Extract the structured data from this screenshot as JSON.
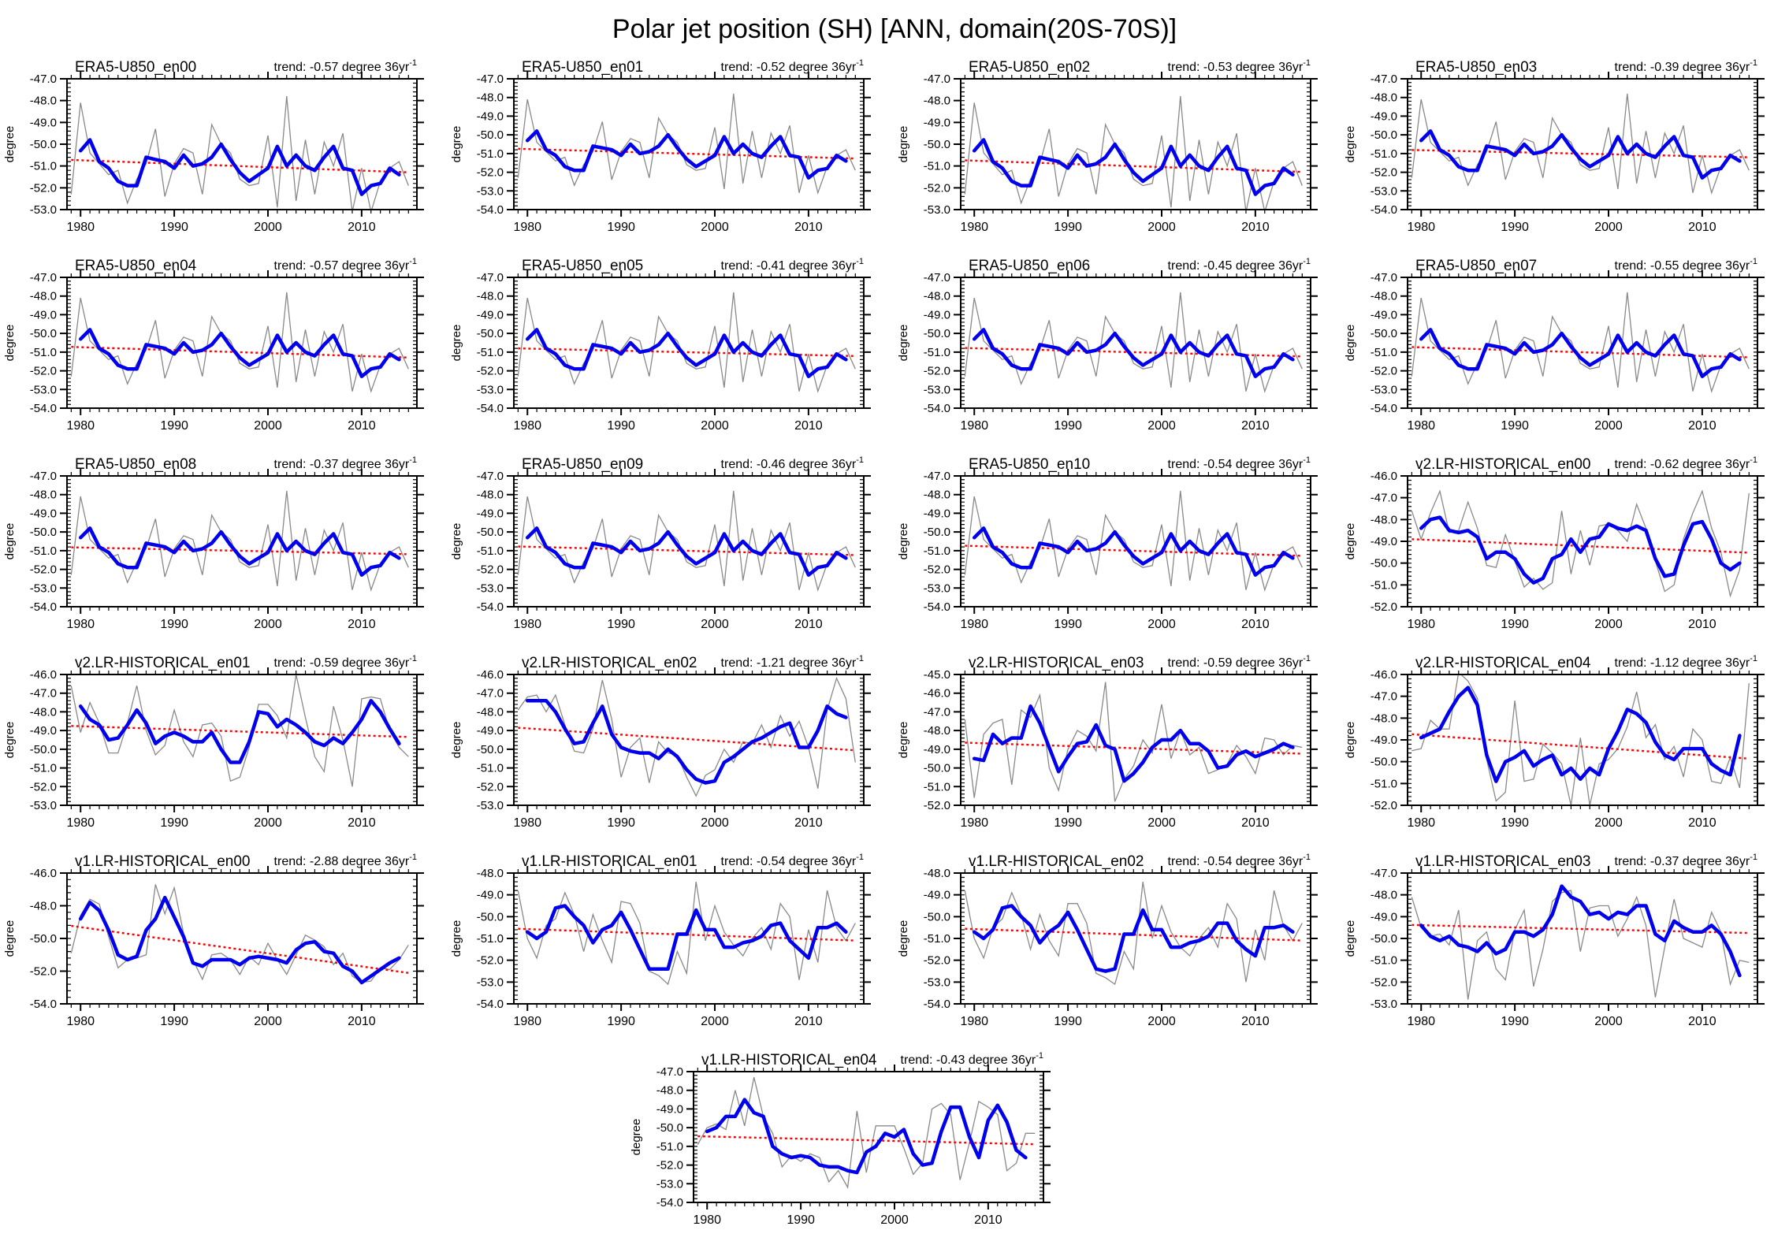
{
  "title": "Polar jet position (SH) [ANN, domain(20S-70S)]",
  "axis": {
    "ylabel": "degree",
    "xticks": [
      1980,
      1990,
      2000,
      2010
    ],
    "x_minor_start": 1979,
    "x_minor_end": 2015,
    "trend_prefix": "trend: ",
    "trend_suffix": " degree 36yr",
    "trend_sup": "-1"
  },
  "colors": {
    "annual": "#898989",
    "smoothed": "#0000ee",
    "trend": "#ff0000",
    "frame": "#000000",
    "text": "#000000"
  },
  "chart_data": {
    "type": "line",
    "x_start_year_annual": 1979,
    "x_start_year_smoothed": 1980,
    "x_domain": [
      1978.55,
      2015.9
    ],
    "series_legend": [
      "annual (gray)",
      "5-yr smoothed (blue)",
      "linear trend (red dotted)"
    ],
    "shared_series": {
      "era5": {
        "annual": [
          -52.3,
          -48.1,
          -50.4,
          -50.9,
          -51.4,
          -51.2,
          -52.7,
          -51.6,
          -50.9,
          -49.3,
          -52.4,
          -50.9,
          -50.2,
          -50.4,
          -52.3,
          -49.1,
          -50.0,
          -50.4,
          -51.6,
          -51.9,
          -51.8,
          -49.6,
          -52.9,
          -47.8,
          -52.6,
          -49.8,
          -52.3,
          -49.9,
          -51.0,
          -49.5,
          -53.1,
          -51.1,
          -53.1,
          -51.7,
          -51.1,
          -50.8,
          -51.9
        ],
        "smoothed": [
          -50.3,
          -49.8,
          -50.8,
          -51.1,
          -51.7,
          -51.9,
          -51.9,
          -50.6,
          -50.7,
          -50.8,
          -51.1,
          -50.5,
          -51.0,
          -50.9,
          -50.6,
          -50.0,
          -50.7,
          -51.3,
          -51.7,
          -51.4,
          -51.1,
          -50.1,
          -51.0,
          -50.5,
          -51.0,
          -51.2,
          -50.6,
          -50.1,
          -51.1,
          -51.2,
          -52.3,
          -51.9,
          -51.8,
          -51.1,
          -51.4
        ]
      }
    },
    "panels": [
      {
        "title": "ERA5-U850_en00",
        "trend_text": "-0.57",
        "trend": -0.57,
        "ylim": [
          -53,
          -47
        ],
        "ystep": 1,
        "series_ref": "era5"
      },
      {
        "title": "ERA5-U850_en01",
        "trend_text": "-0.52",
        "trend": -0.52,
        "ylim": [
          -54,
          -47
        ],
        "ystep": 1,
        "series_ref": "era5"
      },
      {
        "title": "ERA5-U850_en02",
        "trend_text": "-0.53",
        "trend": -0.53,
        "ylim": [
          -53,
          -47
        ],
        "ystep": 1,
        "series_ref": "era5"
      },
      {
        "title": "ERA5-U850_en03",
        "trend_text": "-0.39",
        "trend": -0.39,
        "ylim": [
          -54,
          -47
        ],
        "ystep": 1,
        "series_ref": "era5"
      },
      {
        "title": "ERA5-U850_en04",
        "trend_text": "-0.57",
        "trend": -0.57,
        "ylim": [
          -54,
          -47
        ],
        "ystep": 1,
        "series_ref": "era5"
      },
      {
        "title": "ERA5-U850_en05",
        "trend_text": "-0.41",
        "trend": -0.41,
        "ylim": [
          -54,
          -47
        ],
        "ystep": 1,
        "series_ref": "era5"
      },
      {
        "title": "ERA5-U850_en06",
        "trend_text": "-0.45",
        "trend": -0.45,
        "ylim": [
          -54,
          -47
        ],
        "ystep": 1,
        "series_ref": "era5"
      },
      {
        "title": "ERA5-U850_en07",
        "trend_text": "-0.55",
        "trend": -0.55,
        "ylim": [
          -54,
          -47
        ],
        "ystep": 1,
        "series_ref": "era5"
      },
      {
        "title": "ERA5-U850_en08",
        "trend_text": "-0.37",
        "trend": -0.37,
        "ylim": [
          -54,
          -47
        ],
        "ystep": 1,
        "series_ref": "era5"
      },
      {
        "title": "ERA5-U850_en09",
        "trend_text": "-0.46",
        "trend": -0.46,
        "ylim": [
          -54,
          -47
        ],
        "ystep": 1,
        "series_ref": "era5"
      },
      {
        "title": "ERA5-U850_en10",
        "trend_text": "-0.54",
        "trend": -0.54,
        "ylim": [
          -54,
          -47
        ],
        "ystep": 1,
        "series_ref": "era5"
      },
      {
        "title": "v2.LR-HISTORICAL_en00",
        "trend_text": "-0.62",
        "trend": -0.62,
        "ylim": [
          -52,
          -46
        ],
        "ystep": 1,
        "annual": [
          -47.6,
          -48.9,
          -47.7,
          -46.7,
          -48.6,
          -48.5,
          -47.2,
          -48.4,
          -50.1,
          -50.2,
          -48.7,
          -49.9,
          -51.1,
          -50.7,
          -51.2,
          -50.9,
          -47.6,
          -50.5,
          -48.5,
          -50.1,
          -48.3,
          -48.2,
          -48.5,
          -49.0,
          -47.3,
          -48.4,
          -49.9,
          -51.3,
          -51.0,
          -48.9,
          -47.7,
          -46.7,
          -48.4,
          -49.5,
          -51.5,
          -50.3,
          -46.8
        ],
        "smoothed": [
          -48.4,
          -48.0,
          -47.9,
          -48.5,
          -48.6,
          -48.5,
          -48.8,
          -49.8,
          -49.5,
          -49.5,
          -49.8,
          -50.5,
          -50.9,
          -50.7,
          -49.8,
          -49.6,
          -48.9,
          -49.5,
          -48.9,
          -48.8,
          -48.2,
          -48.4,
          -48.5,
          -48.3,
          -48.5,
          -49.8,
          -50.6,
          -50.5,
          -49.2,
          -48.2,
          -48.1,
          -48.9,
          -50.0,
          -50.3,
          -50.0
        ]
      },
      {
        "title": "v2.LR-HISTORICAL_en01",
        "trend_text": "-0.59",
        "trend": -0.59,
        "ylim": [
          -53,
          -46
        ],
        "ystep": 1,
        "annual": [
          -46.6,
          -49.1,
          -47.5,
          -48.6,
          -50.2,
          -50.2,
          -48.6,
          -46.6,
          -49.0,
          -50.3,
          -49.8,
          -47.9,
          -49.6,
          -50.4,
          -48.7,
          -48.6,
          -49.3,
          -51.7,
          -51.5,
          -49.9,
          -47.6,
          -47.6,
          -48.2,
          -49.4,
          -46.0,
          -48.3,
          -50.4,
          -51.2,
          -47.7,
          -49.5,
          -52.0,
          -47.3,
          -47.2,
          -47.3,
          -49.0,
          -49.9,
          -50.4
        ],
        "smoothed": [
          -47.7,
          -48.4,
          -48.7,
          -49.5,
          -49.4,
          -48.7,
          -47.9,
          -48.6,
          -49.7,
          -49.3,
          -49.1,
          -49.3,
          -49.6,
          -49.6,
          -49.1,
          -50.0,
          -50.7,
          -50.7,
          -49.6,
          -48.0,
          -48.1,
          -48.8,
          -48.4,
          -48.7,
          -49.1,
          -49.6,
          -49.8,
          -49.4,
          -49.7,
          -49.1,
          -48.4,
          -47.4,
          -48.0,
          -48.9,
          -49.7
        ]
      },
      {
        "title": "v2.LR-HISTORICAL_en02",
        "trend_text": "-1.21",
        "trend": -1.21,
        "ylim": [
          -53,
          -46
        ],
        "ystep": 1,
        "annual": [
          -47.9,
          -47.2,
          -47.1,
          -48.0,
          -47.1,
          -48.7,
          -50.1,
          -50.2,
          -48.9,
          -46.3,
          -48.4,
          -51.5,
          -49.9,
          -49.4,
          -51.8,
          -49.6,
          -50.2,
          -50.3,
          -51.5,
          -52.5,
          -51.4,
          -51.1,
          -50.0,
          -50.7,
          -49.6,
          -49.7,
          -48.7,
          -49.9,
          -48.2,
          -49.3,
          -48.5,
          -49.9,
          -52.1,
          -47.9,
          -46.2,
          -47.3,
          -50.7
        ],
        "smoothed": [
          -47.4,
          -47.4,
          -47.4,
          -48.0,
          -48.9,
          -49.7,
          -49.6,
          -48.6,
          -47.7,
          -49.2,
          -49.9,
          -50.1,
          -50.2,
          -50.2,
          -50.5,
          -50.0,
          -50.4,
          -51.1,
          -51.6,
          -51.8,
          -51.7,
          -50.7,
          -50.4,
          -50.0,
          -49.6,
          -49.4,
          -49.1,
          -48.8,
          -48.6,
          -49.9,
          -49.9,
          -49.0,
          -47.7,
          -48.1,
          -48.3
        ]
      },
      {
        "title": "v2.LR-HISTORICAL_en03",
        "trend_text": "-0.59",
        "trend": -0.59,
        "ylim": [
          -52,
          -45
        ],
        "ystep": 1,
        "annual": [
          -47.4,
          -51.6,
          -48.2,
          -47.6,
          -47.4,
          -50.9,
          -46.9,
          -47.3,
          -46.1,
          -50.0,
          -51.2,
          -49.0,
          -48.0,
          -48.3,
          -49.1,
          -45.4,
          -51.8,
          -50.6,
          -49.9,
          -48.5,
          -49.2,
          -46.6,
          -49.5,
          -48.0,
          -49.3,
          -48.9,
          -50.3,
          -50.1,
          -49.8,
          -48.8,
          -49.4,
          -50.3,
          -48.4,
          -48.5,
          -49.3,
          -48.8,
          -48.9
        ],
        "smoothed": [
          -49.5,
          -49.6,
          -48.2,
          -48.7,
          -48.4,
          -48.4,
          -46.7,
          -47.6,
          -48.9,
          -50.2,
          -49.4,
          -48.7,
          -48.6,
          -47.7,
          -48.8,
          -49.0,
          -50.7,
          -50.3,
          -49.7,
          -48.9,
          -48.5,
          -48.5,
          -48.0,
          -48.7,
          -48.7,
          -49.1,
          -50.0,
          -49.9,
          -49.3,
          -49.1,
          -49.4,
          -49.2,
          -49.0,
          -48.7,
          -48.9
        ]
      },
      {
        "title": "v2.LR-HISTORICAL_en04",
        "trend_text": "-1.12",
        "trend": -1.12,
        "ylim": [
          -52,
          -46
        ],
        "ystep": 1,
        "annual": [
          -49.5,
          -49.4,
          -48.1,
          -48.5,
          -48.5,
          -45.9,
          -46.3,
          -47.1,
          -49.9,
          -51.8,
          -51.4,
          -47.2,
          -50.9,
          -50.8,
          -49.2,
          -49.6,
          -50.1,
          -52.0,
          -48.9,
          -52.0,
          -50.1,
          -49.9,
          -49.4,
          -48.4,
          -46.8,
          -48.9,
          -48.3,
          -49.9,
          -49.3,
          -50.7,
          -48.5,
          -49.0,
          -50.9,
          -51.0,
          -49.8,
          -51.2,
          -46.4
        ],
        "smoothed": [
          -48.9,
          -48.7,
          -48.5,
          -47.7,
          -47.0,
          -46.6,
          -47.4,
          -49.7,
          -50.9,
          -50.0,
          -49.8,
          -49.5,
          -50.2,
          -49.9,
          -49.7,
          -50.6,
          -50.3,
          -50.8,
          -50.3,
          -50.6,
          -49.4,
          -48.6,
          -47.6,
          -47.8,
          -48.2,
          -49.1,
          -49.7,
          -49.9,
          -49.4,
          -49.4,
          -49.4,
          -50.1,
          -50.4,
          -50.6,
          -48.8
        ]
      },
      {
        "title": "v1.LR-HISTORICAL_en00",
        "trend_text": "-2.88",
        "trend": -2.88,
        "ylim": [
          -54,
          -46
        ],
        "ystep": 2,
        "annual": [
          -50.9,
          -48.6,
          -47.6,
          -47.9,
          -49.9,
          -51.8,
          -51.3,
          -51.2,
          -51.0,
          -46.7,
          -48.5,
          -46.9,
          -49.7,
          -51.3,
          -52.5,
          -51.0,
          -50.9,
          -51.3,
          -52.2,
          -51.1,
          -51.6,
          -50.3,
          -51.3,
          -52.2,
          -51.0,
          -49.8,
          -50.1,
          -50.5,
          -51.6,
          -50.9,
          -52.3,
          -52.7,
          -52.6,
          -51.8,
          -51.9,
          -51.3,
          -50.4
        ],
        "smoothed": [
          -48.8,
          -47.8,
          -48.3,
          -49.5,
          -51.0,
          -51.3,
          -51.1,
          -49.5,
          -48.8,
          -47.5,
          -48.7,
          -49.9,
          -51.5,
          -51.7,
          -51.3,
          -51.3,
          -51.3,
          -51.6,
          -51.2,
          -51.1,
          -51.2,
          -51.3,
          -51.5,
          -50.7,
          -50.3,
          -50.2,
          -50.8,
          -50.9,
          -51.7,
          -52.0,
          -52.7,
          -52.3,
          -51.9,
          -51.5,
          -51.2
        ]
      },
      {
        "title": "v1.LR-HISTORICAL_en01",
        "trend_text": "-0.54",
        "trend": -0.54,
        "ylim": [
          -54,
          -48
        ],
        "ystep": 1,
        "annual": [
          -48.8,
          -51.0,
          -51.9,
          -50.4,
          -50.1,
          -48.9,
          -49.9,
          -51.6,
          -49.9,
          -51.1,
          -52.1,
          -49.3,
          -49.4,
          -50.3,
          -52.5,
          -52.7,
          -53.1,
          -51.6,
          -52.6,
          -48.4,
          -51.1,
          -49.5,
          -50.7,
          -51.3,
          -51.8,
          -51.0,
          -50.5,
          -51.5,
          -49.4,
          -50.0,
          -52.9,
          -50.6,
          -52.1,
          -48.8,
          -50.5,
          -51.1,
          -50.3
        ],
        "smoothed": [
          -50.7,
          -51.0,
          -50.7,
          -49.6,
          -49.5,
          -50.0,
          -50.4,
          -51.2,
          -50.6,
          -50.4,
          -49.8,
          -50.6,
          -51.5,
          -52.4,
          -52.4,
          -52.4,
          -50.8,
          -50.8,
          -49.7,
          -50.6,
          -50.6,
          -51.4,
          -51.4,
          -51.2,
          -51.1,
          -50.9,
          -50.4,
          -50.3,
          -51.1,
          -51.5,
          -51.9,
          -50.5,
          -50.5,
          -50.3,
          -50.7
        ]
      },
      {
        "title": "v1.LR-HISTORICAL_en02",
        "trend_text": "-0.54",
        "trend": -0.54,
        "ylim": [
          -54,
          -48
        ],
        "ystep": 1,
        "annual": [
          -48.8,
          -51.0,
          -51.9,
          -50.5,
          -50.1,
          -48.9,
          -49.9,
          -51.5,
          -49.9,
          -51.1,
          -51.8,
          -49.4,
          -49.4,
          -50.3,
          -52.6,
          -52.8,
          -53.1,
          -51.6,
          -52.4,
          -48.4,
          -51.0,
          -49.5,
          -50.7,
          -51.4,
          -51.8,
          -51.0,
          -50.5,
          -51.4,
          -49.4,
          -50.1,
          -53.0,
          -50.6,
          -52.0,
          -48.8,
          -50.4,
          -51.1,
          -50.3
        ],
        "smoothed": [
          -50.7,
          -51.0,
          -50.6,
          -49.6,
          -49.5,
          -50.0,
          -50.4,
          -51.2,
          -50.7,
          -50.4,
          -49.8,
          -50.6,
          -51.5,
          -52.4,
          -52.5,
          -52.4,
          -50.8,
          -50.8,
          -49.7,
          -50.6,
          -50.6,
          -51.4,
          -51.4,
          -51.2,
          -51.1,
          -50.9,
          -50.3,
          -50.3,
          -51.1,
          -51.5,
          -51.8,
          -50.5,
          -50.5,
          -50.4,
          -50.7
        ]
      },
      {
        "title": "v1.LR-HISTORICAL_en03",
        "trend_text": "-0.37",
        "trend": -0.37,
        "ylim": [
          -53,
          -47
        ],
        "ystep": 1,
        "annual": [
          -48.1,
          -49.5,
          -49.9,
          -49.8,
          -50.3,
          -48.7,
          -52.8,
          -50.1,
          -49.7,
          -51.4,
          -51.9,
          -49.6,
          -48.7,
          -52.2,
          -50.5,
          -48.3,
          -47.9,
          -47.8,
          -50.6,
          -48.6,
          -48.5,
          -48.5,
          -49.9,
          -49.1,
          -48.1,
          -49.4,
          -52.7,
          -50.4,
          -48.2,
          -50.0,
          -50.2,
          -50.4,
          -48.8,
          -49.7,
          -52.1,
          -51.0,
          -51.1
        ],
        "smoothed": [
          -49.4,
          -49.9,
          -50.1,
          -49.9,
          -50.3,
          -50.4,
          -50.6,
          -50.2,
          -50.7,
          -50.5,
          -49.7,
          -49.7,
          -49.9,
          -49.6,
          -48.9,
          -47.6,
          -48.1,
          -48.3,
          -48.9,
          -48.8,
          -49.1,
          -48.8,
          -48.9,
          -48.5,
          -48.5,
          -49.8,
          -50.1,
          -49.2,
          -49.5,
          -49.7,
          -49.7,
          -49.4,
          -49.8,
          -50.6,
          -51.7
        ]
      },
      {
        "title": "v1.LR-HISTORICAL_en04",
        "trend_text": "-0.43",
        "trend": -0.43,
        "ylim": [
          -54,
          -47
        ],
        "ystep": 1,
        "annual": [
          -50.9,
          -50.0,
          -49.8,
          -50.1,
          -48.0,
          -49.9,
          -47.3,
          -49.4,
          -50.3,
          -52.1,
          -51.5,
          -51.8,
          -51.4,
          -51.6,
          -52.9,
          -52.3,
          -53.2,
          -49.1,
          -52.4,
          -49.9,
          -49.9,
          -49.9,
          -51.1,
          -52.5,
          -51.9,
          -49.0,
          -48.7,
          -49.3,
          -52.8,
          -50.8,
          -48.6,
          -48.9,
          -49.3,
          -52.3,
          -51.9,
          -50.3,
          -50.3
        ],
        "smoothed": [
          -50.2,
          -50.0,
          -49.4,
          -49.4,
          -48.5,
          -49.2,
          -49.4,
          -51.0,
          -51.4,
          -51.6,
          -51.5,
          -51.6,
          -52.0,
          -52.1,
          -52.1,
          -52.3,
          -52.4,
          -51.3,
          -51.0,
          -50.3,
          -50.5,
          -50.1,
          -51.4,
          -52.0,
          -51.9,
          -50.2,
          -48.9,
          -48.9,
          -50.5,
          -51.6,
          -49.6,
          -48.8,
          -49.7,
          -51.2,
          -51.6
        ]
      }
    ]
  }
}
